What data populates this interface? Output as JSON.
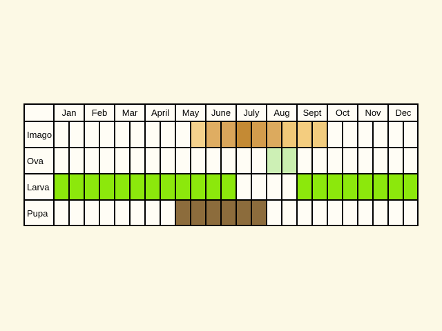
{
  "months": [
    "Jan",
    "Feb",
    "Mar",
    "Apr",
    "May",
    "June",
    "July",
    "Aug",
    "Sept",
    "Oct",
    "Nov",
    "Dec"
  ],
  "month_labels": [
    "Jan",
    "Feb",
    "Mar",
    "April",
    "May",
    "June",
    "July",
    "Aug",
    "Sept",
    "Oct",
    "Nov",
    "Dec"
  ],
  "stages": [
    {
      "label": "Imago",
      "cells": [
        {
          "month": "May",
          "half": 2,
          "color": "#f4d18c"
        },
        {
          "month": "June",
          "half": 1,
          "color": "#dfad62"
        },
        {
          "month": "June",
          "half": 2,
          "color": "#d9a55a"
        },
        {
          "month": "July",
          "half": 1,
          "color": "#c48a34"
        },
        {
          "month": "July",
          "half": 2,
          "color": "#d39c4c"
        },
        {
          "month": "Aug",
          "half": 1,
          "color": "#dcaa5e"
        },
        {
          "month": "Aug",
          "half": 2,
          "color": "#f0c878"
        },
        {
          "month": "Sept",
          "half": 1,
          "color": "#f4cd7f"
        },
        {
          "month": "Sept",
          "half": 2,
          "color": "#f2cc7e"
        }
      ]
    },
    {
      "label": "Ova",
      "cells": [
        {
          "month": "Aug",
          "half": 1,
          "color": "#cdf0b5"
        },
        {
          "month": "Aug",
          "half": 2,
          "color": "#c9efaf"
        }
      ]
    },
    {
      "label": "Larva",
      "cells": [
        {
          "month": "Jan",
          "half": 1,
          "color": "#8ce80c"
        },
        {
          "month": "Jan",
          "half": 2,
          "color": "#8ce80c"
        },
        {
          "month": "Feb",
          "half": 1,
          "color": "#8ce80c"
        },
        {
          "month": "Feb",
          "half": 2,
          "color": "#8ce80c"
        },
        {
          "month": "Mar",
          "half": 1,
          "color": "#8ce80c"
        },
        {
          "month": "Mar",
          "half": 2,
          "color": "#8ce80c"
        },
        {
          "month": "Apr",
          "half": 1,
          "color": "#8ce80c"
        },
        {
          "month": "Apr",
          "half": 2,
          "color": "#8ce80c"
        },
        {
          "month": "May",
          "half": 1,
          "color": "#8ce80c"
        },
        {
          "month": "May",
          "half": 2,
          "color": "#8ce80c"
        },
        {
          "month": "June",
          "half": 1,
          "color": "#8ce80c"
        },
        {
          "month": "June",
          "half": 2,
          "color": "#8ce80c"
        },
        {
          "month": "Sept",
          "half": 1,
          "color": "#8ce80c"
        },
        {
          "month": "Sept",
          "half": 2,
          "color": "#8ce80c"
        },
        {
          "month": "Oct",
          "half": 1,
          "color": "#8ce80c"
        },
        {
          "month": "Oct",
          "half": 2,
          "color": "#8ce80c"
        },
        {
          "month": "Nov",
          "half": 1,
          "color": "#8ce80c"
        },
        {
          "month": "Nov",
          "half": 2,
          "color": "#8ce80c"
        },
        {
          "month": "Dec",
          "half": 1,
          "color": "#8ce80c"
        },
        {
          "month": "Dec",
          "half": 2,
          "color": "#8ce80c"
        }
      ]
    },
    {
      "label": "Pupa",
      "cells": [
        {
          "month": "May",
          "half": 1,
          "color": "#8c6c3c"
        },
        {
          "month": "May",
          "half": 2,
          "color": "#8c6c3c"
        },
        {
          "month": "June",
          "half": 1,
          "color": "#8c6c3c"
        },
        {
          "month": "June",
          "half": 2,
          "color": "#8c6c3c"
        },
        {
          "month": "July",
          "half": 1,
          "color": "#8c6c3c"
        },
        {
          "month": "July",
          "half": 2,
          "color": "#8c6c3c"
        }
      ]
    }
  ],
  "colors": {
    "background": "#fcf9e5",
    "cell_empty": "#fffdf5",
    "grid": "#000000"
  }
}
